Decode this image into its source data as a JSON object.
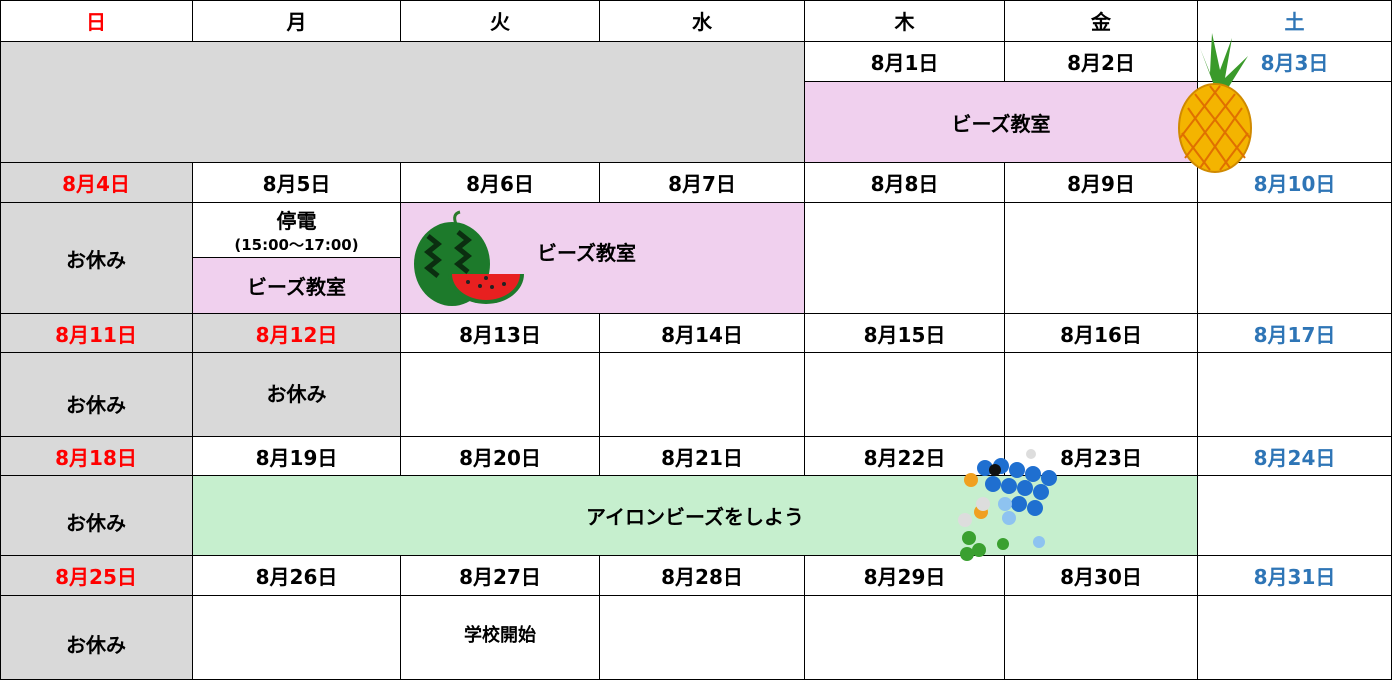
{
  "calendar": {
    "weekdays": [
      "日",
      "月",
      "火",
      "水",
      "木",
      "金",
      "土"
    ],
    "weeks": [
      {
        "dates": [
          null,
          null,
          null,
          null,
          "8月1日",
          "8月2日",
          "8月3日"
        ],
        "events": [
          "ビーズ教室"
        ]
      },
      {
        "dates": [
          "8月4日",
          "8月5日",
          "8月6日",
          "8月7日",
          "8月8日",
          "8月9日",
          "8月10日"
        ],
        "events": [
          "お休み",
          "停電",
          "(15:00～17:00)",
          "ビーズ教室",
          "ビーズ教室"
        ]
      },
      {
        "dates": [
          "8月11日",
          "8月12日",
          "8月13日",
          "8月14日",
          "8月15日",
          "8月16日",
          "8月17日"
        ],
        "events": [
          "お休み",
          "お休み"
        ]
      },
      {
        "dates": [
          "8月18日",
          "8月19日",
          "8月20日",
          "8月21日",
          "8月22日",
          "8月23日",
          "8月24日"
        ],
        "events": [
          "お休み",
          "アイロンビーズをしよう"
        ]
      },
      {
        "dates": [
          "8月25日",
          "8月26日",
          "8月27日",
          "8月28日",
          "8月29日",
          "8月30日",
          "8月31日"
        ],
        "events": [
          "お休み",
          "学校開始"
        ]
      }
    ]
  }
}
